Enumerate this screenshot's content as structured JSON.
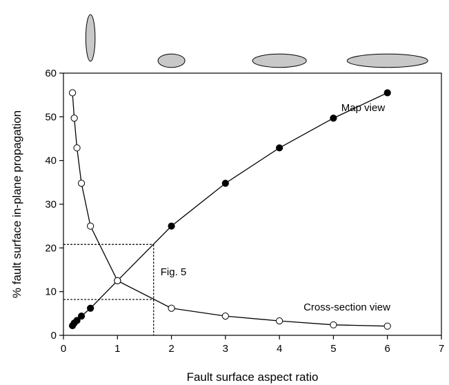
{
  "chart_data": {
    "type": "scatter",
    "title": "",
    "xlabel": "Fault surface aspect ratio",
    "ylabel": "% fault surface in-plane propagation",
    "xlim": [
      0,
      7
    ],
    "ylim": [
      0,
      60
    ],
    "xticks": [
      "0",
      "1",
      "2",
      "3",
      "4",
      "5",
      "6",
      "7"
    ],
    "yticks": [
      "0",
      "10",
      "20",
      "30",
      "40",
      "50",
      "60"
    ],
    "grid": false,
    "series": [
      {
        "name": "Map view",
        "marker": "filled-circle",
        "x": [
          0.167,
          0.2,
          0.25,
          0.333,
          0.5,
          1,
          2,
          3,
          4,
          5,
          6
        ],
        "y": [
          2.2,
          2.8,
          3.4,
          4.4,
          6.2,
          12.5,
          25,
          34.8,
          42.9,
          49.7,
          55.5
        ]
      },
      {
        "name": "Cross-section view",
        "marker": "open-circle",
        "x": [
          0.167,
          0.2,
          0.25,
          0.333,
          0.5,
          1,
          2,
          3,
          4,
          5,
          6
        ],
        "y": [
          55.5,
          49.7,
          42.9,
          34.8,
          25,
          12.5,
          6.2,
          4.4,
          3.3,
          2.4,
          2.1
        ]
      }
    ],
    "reference_lines": {
      "label": "Fig. 5",
      "x": 1.67,
      "y_upper": 20.8,
      "y_lower": 8.2
    },
    "aspect_ellipses": [
      {
        "ratio": 0.2,
        "x": 0.5
      },
      {
        "ratio": 2,
        "x": 2
      },
      {
        "ratio": 4,
        "x": 4
      },
      {
        "ratio": 6,
        "x": 6
      }
    ],
    "colors": {
      "axis": "#000000",
      "line": "#000000",
      "marker_fill_filled": "#000000",
      "marker_fill_open": "#ffffff",
      "ellipse_fill": "#c8c8c8"
    }
  }
}
